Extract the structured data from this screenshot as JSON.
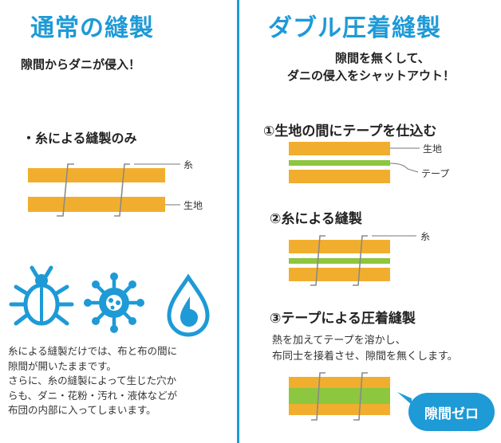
{
  "left": {
    "title": "通常の縫製",
    "subtitle": "隙間からダニが侵入！",
    "bullet": "・糸による縫製のみ",
    "label_thread": "糸",
    "label_fabric": "生地",
    "icons": [
      "mite-icon",
      "pollen-icon",
      "water-drop-icon"
    ],
    "body_lines": [
      "糸による縫製だけでは、布と布の間に",
      "隙間が開いたままです。",
      "さらに、糸の縫製によって生じた穴か",
      "らも、ダニ・花粉・汚れ・液体などが",
      "布団の内部に入ってしまいます。"
    ]
  },
  "right": {
    "title": "ダブル圧着縫製",
    "subtitle_lines": [
      "隙間を無くして、",
      "ダニの侵入をシャットアウト！"
    ],
    "step1": "①生地の間にテープを仕込む",
    "step1_label_fabric": "生地",
    "step1_label_tape": "テープ",
    "step2": "②糸による縫製",
    "step2_label_thread": "糸",
    "step3": "③テープによる圧着縫製",
    "step3_desc_lines": [
      "熱を加えてテープを溶かし、",
      "布同士を接着させ、隙間を無くします。"
    ],
    "bubble": "隙間ゼロ"
  },
  "colors": {
    "accent": "#1e9ad6",
    "fabric": "#f1ae2e",
    "tape": "#8dc63f",
    "stitch": "#8a8a8a"
  }
}
